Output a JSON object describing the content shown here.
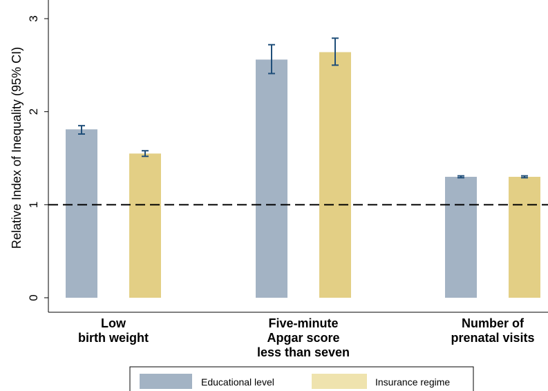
{
  "chart_data": {
    "type": "bar",
    "title": "",
    "xlabel": "",
    "ylabel": "Relative Index of Inequality (95% CI)",
    "ylim": [
      0,
      3
    ],
    "yticks": [
      0,
      1,
      2,
      3
    ],
    "reference_line": 1,
    "grid": false,
    "legend_placement": "bottom",
    "categories": [
      [
        "Low",
        "birth weight"
      ],
      [
        "Five-minute",
        "Apgar score",
        "less than seven"
      ],
      [
        "Number of",
        "prenatal visits"
      ]
    ],
    "series": [
      {
        "name": "Educational level",
        "color": "#a3b3c4",
        "values": [
          1.81,
          2.56,
          1.3
        ],
        "ci_low": [
          1.76,
          2.41,
          1.29
        ],
        "ci_high": [
          1.85,
          2.72,
          1.31
        ]
      },
      {
        "name": "Insurance regime",
        "color": "#e3cf85",
        "legend_color": "#efe3ae",
        "values": [
          1.55,
          2.64,
          1.3
        ],
        "ci_low": [
          1.52,
          2.5,
          1.29
        ],
        "ci_high": [
          1.58,
          2.79,
          1.31
        ]
      }
    ],
    "errorbar_color": "#1f4e79"
  }
}
